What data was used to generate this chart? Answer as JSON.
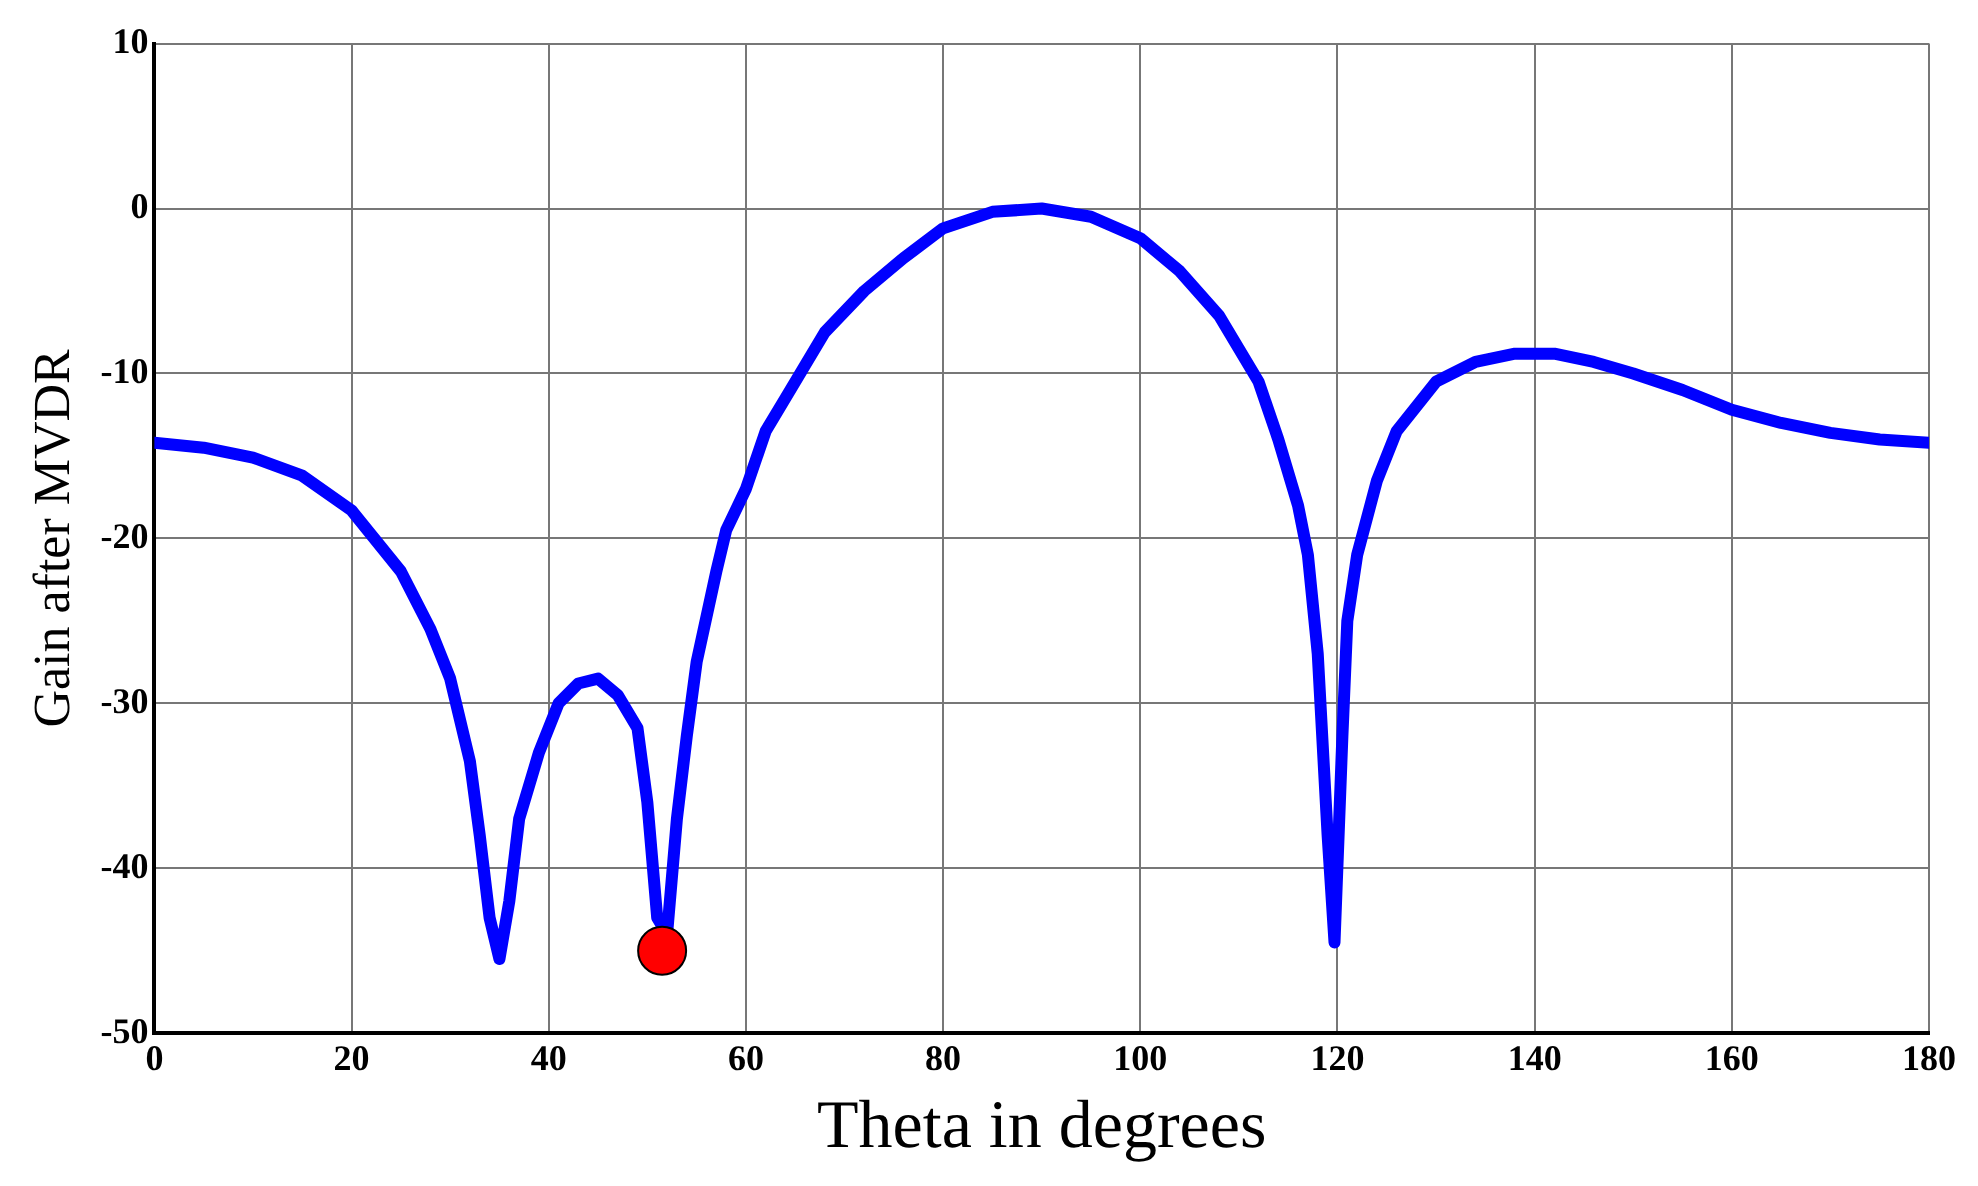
{
  "chart_data": {
    "type": "line",
    "xlabel": "Theta in degrees",
    "ylabel": "Gain after MVDR",
    "xlim": [
      0,
      180
    ],
    "xticks": [
      0,
      20,
      40,
      60,
      80,
      100,
      120,
      140,
      160,
      180
    ],
    "ylim": [
      -50,
      10
    ],
    "yticks": [
      -50,
      -40,
      -30,
      -20,
      -10,
      0,
      10
    ],
    "grid": true,
    "legend": false,
    "series": [
      {
        "type": "line",
        "color": "#0000ff",
        "marker": "none",
        "x": [
          0,
          5,
          10,
          15,
          20,
          25,
          28,
          30,
          32,
          33,
          34,
          35,
          36,
          37,
          39,
          41,
          43,
          45,
          47,
          49,
          50,
          51,
          52,
          53,
          54,
          55,
          57,
          58,
          60,
          62,
          64,
          66,
          68,
          72,
          76,
          80,
          85,
          90,
          95,
          100,
          104,
          108,
          110,
          112,
          114,
          116,
          117,
          118,
          119,
          119.7,
          120.5,
          121,
          122,
          124,
          126,
          128,
          130,
          134,
          138,
          142,
          146,
          150,
          155,
          160,
          165,
          170,
          175,
          180
        ],
        "values": [
          -14.2,
          -14.5,
          -15.1,
          -16.2,
          -18.3,
          -22,
          -25.5,
          -28.5,
          -33.5,
          -38,
          -43,
          -45.5,
          -42,
          -37,
          -33,
          -30,
          -28.8,
          -28.5,
          -29.5,
          -31.5,
          -36,
          -43,
          -44,
          -37,
          -32,
          -27.5,
          -22,
          -19.5,
          -17,
          -13.5,
          -11.5,
          -9.5,
          -7.5,
          -5,
          -3,
          -1.2,
          -0.2,
          0,
          -0.5,
          -1.8,
          -3.8,
          -6.5,
          -8.5,
          -10.5,
          -14,
          -18,
          -21,
          -27,
          -38,
          -44.5,
          -32,
          -25,
          -21,
          -16.5,
          -13.5,
          -12,
          -10.5,
          -9.3,
          -8.8,
          -8.8,
          -9.3,
          -10,
          -11,
          -12.2,
          -13,
          -13.6,
          -14,
          -14.2
        ]
      },
      {
        "type": "scatter",
        "color": "#ff0000",
        "marker": "circle",
        "x": [
          51.5
        ],
        "values": [
          -45
        ]
      }
    ]
  }
}
